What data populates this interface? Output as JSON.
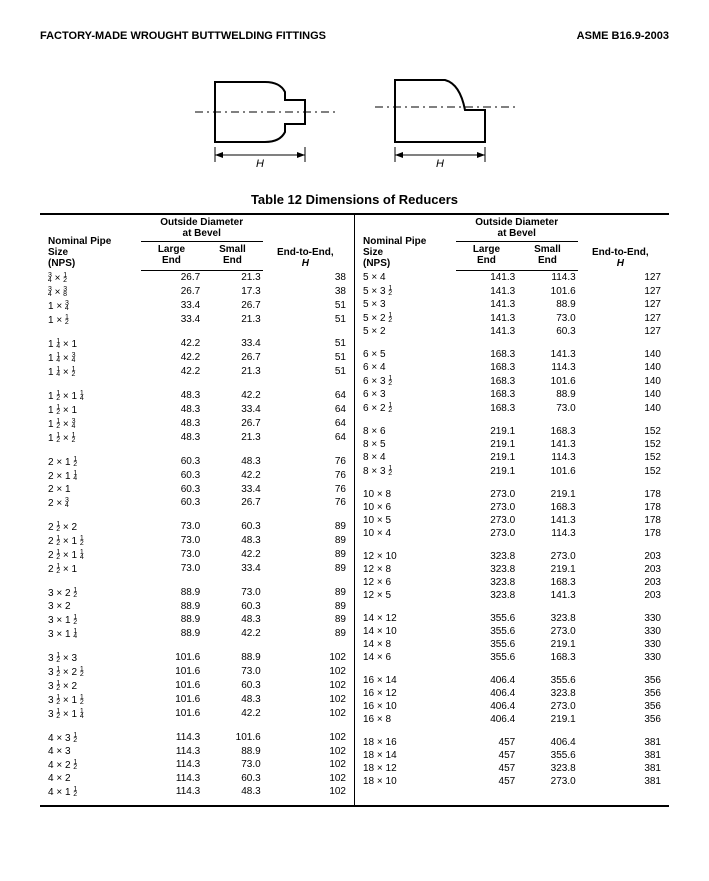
{
  "header": {
    "left": "FACTORY-MADE WROUGHT BUTTWELDING FITTINGS",
    "right": "ASME B16.9-2003"
  },
  "table_title": "Table 12   Dimensions of Reducers",
  "column_headers": {
    "nps": "Nominal Pipe\nSize\n(NPS)",
    "bevel_group": "Outside Diameter\nat Bevel",
    "large": "Large\nEnd",
    "small": "Small\nEnd",
    "h": "End-to-End,\nH",
    "italic_H": "H"
  },
  "left": [
    [
      [
        "3/4 × 1/2",
        "26.7",
        "21.3",
        "38"
      ],
      [
        "3/4 × 3/8",
        "26.7",
        "17.3",
        "38"
      ],
      [
        "1 × 3/4",
        "33.4",
        "26.7",
        "51"
      ],
      [
        "1 × 1/2",
        "33.4",
        "21.3",
        "51"
      ]
    ],
    [
      [
        "1 1/4 × 1",
        "42.2",
        "33.4",
        "51"
      ],
      [
        "1 1/4 × 3/4",
        "42.2",
        "26.7",
        "51"
      ],
      [
        "1 1/4 × 1/2",
        "42.2",
        "21.3",
        "51"
      ]
    ],
    [
      [
        "1 1/2 × 1 1/4",
        "48.3",
        "42.2",
        "64"
      ],
      [
        "1 1/2 × 1",
        "48.3",
        "33.4",
        "64"
      ],
      [
        "1 1/2 × 3/4",
        "48.3",
        "26.7",
        "64"
      ],
      [
        "1 1/2 × 1/2",
        "48.3",
        "21.3",
        "64"
      ]
    ],
    [
      [
        "2 × 1 1/2",
        "60.3",
        "48.3",
        "76"
      ],
      [
        "2 × 1 1/4",
        "60.3",
        "42.2",
        "76"
      ],
      [
        "2 × 1",
        "60.3",
        "33.4",
        "76"
      ],
      [
        "2 × 3/4",
        "60.3",
        "26.7",
        "76"
      ]
    ],
    [
      [
        "2 1/2 × 2",
        "73.0",
        "60.3",
        "89"
      ],
      [
        "2 1/2 × 1 1/2",
        "73.0",
        "48.3",
        "89"
      ],
      [
        "2 1/2 × 1 1/4",
        "73.0",
        "42.2",
        "89"
      ],
      [
        "2 1/2 × 1",
        "73.0",
        "33.4",
        "89"
      ]
    ],
    [
      [
        "3 × 2 1/2",
        "88.9",
        "73.0",
        "89"
      ],
      [
        "3 × 2",
        "88.9",
        "60.3",
        "89"
      ],
      [
        "3 × 1 1/2",
        "88.9",
        "48.3",
        "89"
      ],
      [
        "3 × 1 1/4",
        "88.9",
        "42.2",
        "89"
      ]
    ],
    [
      [
        "3 1/2 × 3",
        "101.6",
        "88.9",
        "102"
      ],
      [
        "3 1/2 × 2 1/2",
        "101.6",
        "73.0",
        "102"
      ],
      [
        "3 1/2 × 2",
        "101.6",
        "60.3",
        "102"
      ],
      [
        "3 1/2 × 1 1/2",
        "101.6",
        "48.3",
        "102"
      ],
      [
        "3 1/2 × 1 1/4",
        "101.6",
        "42.2",
        "102"
      ]
    ],
    [
      [
        "4 × 3 1/2",
        "114.3",
        "101.6",
        "102"
      ],
      [
        "4 × 3",
        "114.3",
        "88.9",
        "102"
      ],
      [
        "4 × 2 1/2",
        "114.3",
        "73.0",
        "102"
      ],
      [
        "4 × 2",
        "114.3",
        "60.3",
        "102"
      ],
      [
        "4 × 1 1/2",
        "114.3",
        "48.3",
        "102"
      ]
    ]
  ],
  "right": [
    [
      [
        "5 × 4",
        "141.3",
        "114.3",
        "127"
      ],
      [
        "5 × 3 1/2",
        "141.3",
        "101.6",
        "127"
      ],
      [
        "5 × 3",
        "141.3",
        "88.9",
        "127"
      ],
      [
        "5 × 2 1/2",
        "141.3",
        "73.0",
        "127"
      ],
      [
        "5 × 2",
        "141.3",
        "60.3",
        "127"
      ]
    ],
    [
      [
        "6 × 5",
        "168.3",
        "141.3",
        "140"
      ],
      [
        "6 × 4",
        "168.3",
        "114.3",
        "140"
      ],
      [
        "6 × 3 1/2",
        "168.3",
        "101.6",
        "140"
      ],
      [
        "6 × 3",
        "168.3",
        "88.9",
        "140"
      ],
      [
        "6 × 2 1/2",
        "168.3",
        "73.0",
        "140"
      ]
    ],
    [
      [
        "8 × 6",
        "219.1",
        "168.3",
        "152"
      ],
      [
        "8 × 5",
        "219.1",
        "141.3",
        "152"
      ],
      [
        "8 × 4",
        "219.1",
        "114.3",
        "152"
      ],
      [
        "8 × 3 1/2",
        "219.1",
        "101.6",
        "152"
      ]
    ],
    [
      [
        "10 × 8",
        "273.0",
        "219.1",
        "178"
      ],
      [
        "10 × 6",
        "273.0",
        "168.3",
        "178"
      ],
      [
        "10 × 5",
        "273.0",
        "141.3",
        "178"
      ],
      [
        "10 × 4",
        "273.0",
        "114.3",
        "178"
      ]
    ],
    [
      [
        "12 × 10",
        "323.8",
        "273.0",
        "203"
      ],
      [
        "12 × 8",
        "323.8",
        "219.1",
        "203"
      ],
      [
        "12 × 6",
        "323.8",
        "168.3",
        "203"
      ],
      [
        "12 × 5",
        "323.8",
        "141.3",
        "203"
      ]
    ],
    [
      [
        "14 × 12",
        "355.6",
        "323.8",
        "330"
      ],
      [
        "14 × 10",
        "355.6",
        "273.0",
        "330"
      ],
      [
        "14 × 8",
        "355.6",
        "219.1",
        "330"
      ],
      [
        "14 × 6",
        "355.6",
        "168.3",
        "330"
      ]
    ],
    [
      [
        "16 × 14",
        "406.4",
        "355.6",
        "356"
      ],
      [
        "16 × 12",
        "406.4",
        "323.8",
        "356"
      ],
      [
        "16 × 10",
        "406.4",
        "273.0",
        "356"
      ],
      [
        "16 × 8",
        "406.4",
        "219.1",
        "356"
      ]
    ],
    [
      [
        "18 × 16",
        "457",
        "406.4",
        "381"
      ],
      [
        "18 × 14",
        "457",
        "355.6",
        "381"
      ],
      [
        "18 × 12",
        "457",
        "323.8",
        "381"
      ],
      [
        "18 × 10",
        "457",
        "273.0",
        "381"
      ]
    ]
  ]
}
